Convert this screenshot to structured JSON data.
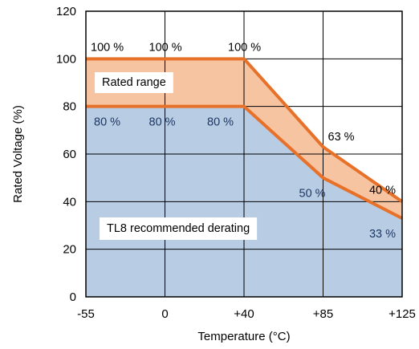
{
  "chart_data": {
    "type": "area",
    "xlabel": "Temperature (°C)",
    "ylabel": "Rated Voltage (%)",
    "xlim": [
      -55,
      125
    ],
    "ylim": [
      0,
      120
    ],
    "x_ticks": [
      {
        "value": -55,
        "label": "-55"
      },
      {
        "value": 0,
        "label": "0"
      },
      {
        "value": 40,
        "label": "+40"
      },
      {
        "value": 85,
        "label": "+85"
      },
      {
        "value": 125,
        "label": "+125"
      }
    ],
    "y_ticks": [
      {
        "value": 0,
        "label": "0"
      },
      {
        "value": 20,
        "label": "20"
      },
      {
        "value": 40,
        "label": "40"
      },
      {
        "value": 60,
        "label": "60"
      },
      {
        "value": 80,
        "label": "80"
      },
      {
        "value": 100,
        "label": "100"
      },
      {
        "value": 120,
        "label": "120"
      }
    ],
    "grid": true,
    "series": [
      {
        "name": "Rated range",
        "color": "#F7C4A2",
        "line_color": "#E8712A",
        "points": [
          [
            -55,
            100
          ],
          [
            40,
            100
          ],
          [
            85,
            63
          ],
          [
            125,
            40
          ]
        ]
      },
      {
        "name": "TL8 recommended derating",
        "color": "#B8CCE4",
        "line_color": "#E8712A",
        "points": [
          [
            -55,
            80
          ],
          [
            40,
            80
          ],
          [
            85,
            50
          ],
          [
            125,
            33
          ]
        ]
      }
    ],
    "annotations": [
      {
        "text": "100 %",
        "x": -55,
        "y": 100,
        "color": "#000000"
      },
      {
        "text": "100 %",
        "x": 0,
        "y": 100,
        "color": "#000000"
      },
      {
        "text": "100 %",
        "x": 40,
        "y": 100,
        "color": "#000000"
      },
      {
        "text": "63 %",
        "x": 85,
        "y": 63,
        "color": "#000000"
      },
      {
        "text": "40 %",
        "x": 125,
        "y": 40,
        "color": "#000000"
      },
      {
        "text": "80 %",
        "x": -55,
        "y": 80,
        "color": "#1F3864"
      },
      {
        "text": "80 %",
        "x": 0,
        "y": 80,
        "color": "#1F3864"
      },
      {
        "text": "80 %",
        "x": 40,
        "y": 80,
        "color": "#1F3864"
      },
      {
        "text": "50 %",
        "x": 85,
        "y": 50,
        "color": "#1F3864"
      },
      {
        "text": "33 %",
        "x": 125,
        "y": 33,
        "color": "#1F3864"
      }
    ]
  }
}
